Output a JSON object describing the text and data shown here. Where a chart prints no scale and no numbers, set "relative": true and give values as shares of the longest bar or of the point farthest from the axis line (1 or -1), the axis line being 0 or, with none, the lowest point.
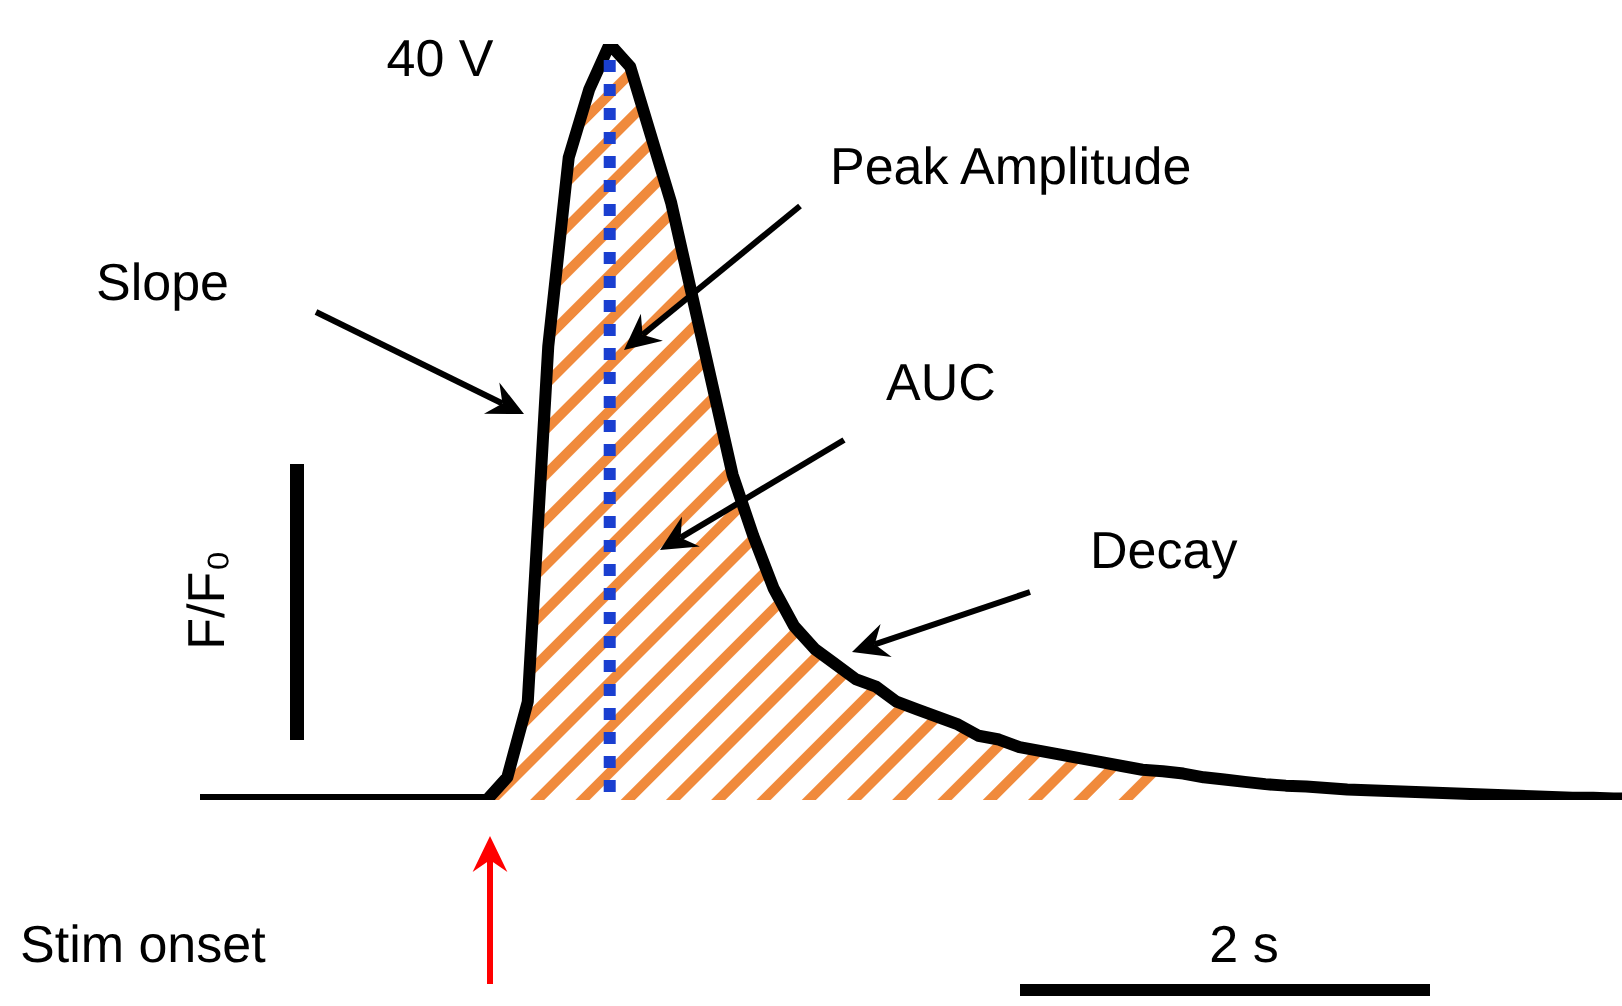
{
  "chart_data": {
    "type": "line",
    "relative": true,
    "line_style": "solid",
    "ylabel": "F/F₀",
    "categories": [
      null,
      null,
      null,
      null,
      null,
      null,
      null,
      null,
      null,
      null,
      null,
      null,
      null,
      null,
      null,
      null,
      null,
      null,
      null,
      null,
      null,
      null,
      null,
      null,
      null,
      null,
      null,
      null,
      null,
      null,
      null,
      null,
      null,
      null,
      null,
      null,
      null,
      null,
      null,
      null,
      null,
      null,
      null,
      null,
      null,
      null,
      null,
      null,
      null,
      null,
      null,
      null,
      null,
      null,
      null,
      null,
      null,
      null,
      null,
      null,
      null,
      null,
      null,
      null,
      null,
      null,
      null,
      null,
      null,
      null,
      null
    ],
    "series": [
      {
        "type": "area",
        "color": "#f08a3c",
        "values": [
          null,
          null,
          null,
          null,
          null,
          null,
          null,
          null,
          null,
          null,
          null,
          null,
          null,
          null,
          0,
          0.03,
          0.13,
          0.6,
          0.85,
          0.94,
          1,
          0.97,
          0.88,
          0.79,
          0.67,
          0.55,
          0.43,
          0.35,
          0.28,
          0.23,
          0.2,
          0.18,
          0.16,
          0.15,
          0.13,
          0.12,
          0.11,
          0.1,
          0.085,
          0.08,
          0.07,
          0.065,
          0.06,
          0.055,
          0.05,
          0.045,
          0.04,
          0.038,
          null,
          null,
          null,
          null,
          null,
          null,
          null,
          null,
          null,
          null,
          null,
          null,
          null,
          null,
          null,
          null,
          null,
          null,
          null,
          null,
          null,
          null,
          null
        ]
      },
      {
        "color": "#000000",
        "values": [
          0,
          0,
          0,
          0,
          0,
          0,
          0,
          0,
          0,
          0,
          0,
          0,
          0,
          0,
          0,
          0.03,
          0.13,
          0.6,
          0.85,
          0.94,
          1,
          0.97,
          0.88,
          0.79,
          0.67,
          0.55,
          0.43,
          0.35,
          0.28,
          0.23,
          0.2,
          0.18,
          0.16,
          0.15,
          0.13,
          0.12,
          0.11,
          0.1,
          0.085,
          0.08,
          0.07,
          0.065,
          0.06,
          0.055,
          0.05,
          0.045,
          0.04,
          0.038,
          0.035,
          0.03,
          0.027,
          0.024,
          0.021,
          0.019,
          0.018,
          0.016,
          0.014,
          0.013,
          0.012,
          0.011,
          0.01,
          0.009,
          0.008,
          0.007,
          0.006,
          0.005,
          0.004,
          0.003,
          0.003,
          0.002,
          0.002
        ]
      }
    ],
    "annotations": [
      "40 V",
      "Slope",
      "Peak Amplitude",
      "AUC",
      "Decay",
      "Stim onset",
      "2 s"
    ]
  }
}
